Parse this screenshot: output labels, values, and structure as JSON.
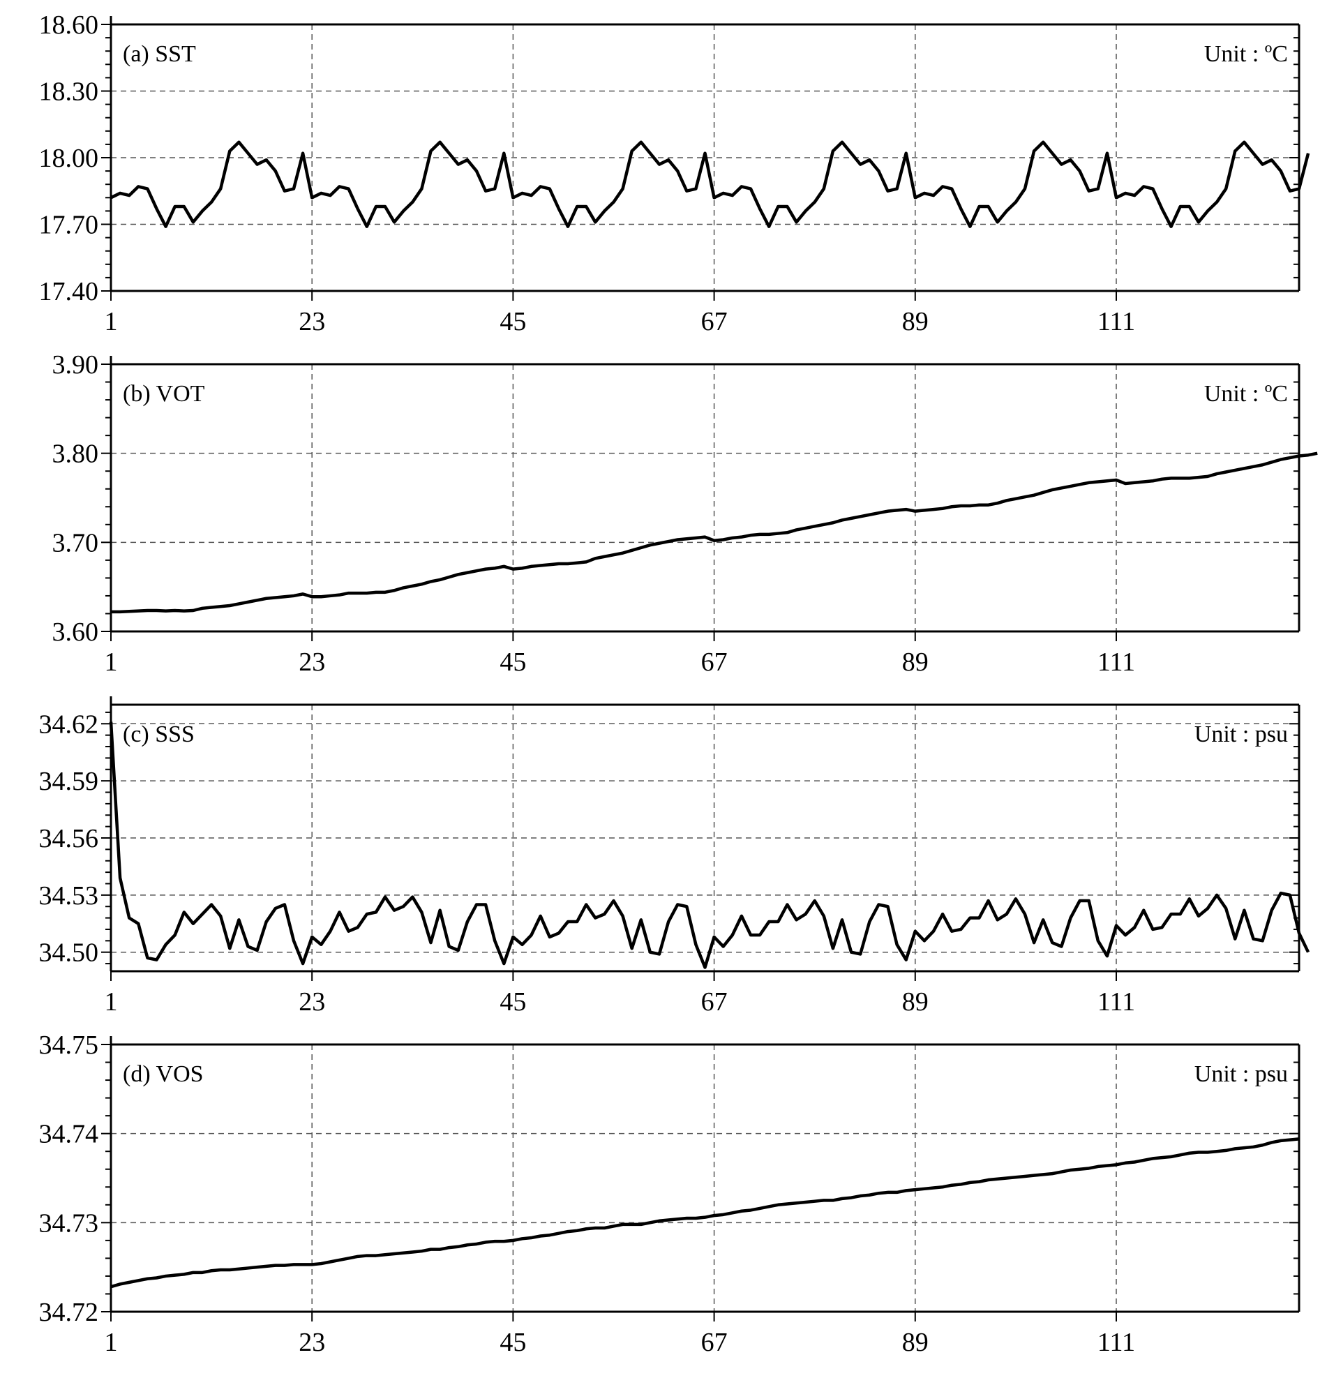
{
  "chart_data": [
    {
      "type": "line",
      "title": "(a) SST",
      "unit_label": "Unit : ºC",
      "xlim": [
        1,
        131
      ],
      "x_ticks": [
        1,
        23,
        45,
        67,
        89,
        111
      ],
      "ylim": [
        17.4,
        18.6
      ],
      "y_ticks": [
        "17.40",
        "17.70",
        "18.00",
        "18.30",
        "18.60"
      ],
      "grid": true,
      "values": [
        17.82,
        17.84,
        17.83,
        17.87,
        17.86,
        17.77,
        17.69,
        17.78,
        17.78,
        17.71,
        17.76,
        17.8,
        17.86,
        18.03,
        18.07,
        18.02,
        17.97,
        17.99,
        17.94,
        17.85,
        17.86,
        18.02,
        17.82,
        17.84,
        17.83,
        17.87,
        17.86,
        17.77,
        17.69,
        17.78,
        17.78,
        17.71,
        17.76,
        17.8,
        17.86,
        18.03,
        18.07,
        18.02,
        17.97,
        17.99,
        17.94,
        17.85,
        17.86,
        18.02,
        17.82,
        17.84,
        17.83,
        17.87,
        17.86,
        17.77,
        17.69,
        17.78,
        17.78,
        17.71,
        17.76,
        17.8,
        17.86,
        18.03,
        18.07,
        18.02,
        17.97,
        17.99,
        17.94,
        17.85,
        17.86,
        18.02,
        17.82,
        17.84,
        17.83,
        17.87,
        17.86,
        17.77,
        17.69,
        17.78,
        17.78,
        17.71,
        17.76,
        17.8,
        17.86,
        18.03,
        18.07,
        18.02,
        17.97,
        17.99,
        17.94,
        17.85,
        17.86,
        18.02,
        17.82,
        17.84,
        17.83,
        17.87,
        17.86,
        17.77,
        17.69,
        17.78,
        17.78,
        17.71,
        17.76,
        17.8,
        17.86,
        18.03,
        18.07,
        18.02,
        17.97,
        17.99,
        17.94,
        17.85,
        17.86,
        18.02,
        17.82,
        17.84,
        17.83,
        17.87,
        17.86,
        17.77,
        17.69,
        17.78,
        17.78,
        17.71,
        17.76,
        17.8,
        17.86,
        18.03,
        18.07,
        18.02,
        17.97,
        17.99,
        17.94,
        17.85,
        17.86,
        18.02
      ]
    },
    {
      "type": "line",
      "title": "(b) VOT",
      "unit_label": "Unit : ºC",
      "xlim": [
        1,
        131
      ],
      "x_ticks": [
        1,
        23,
        45,
        67,
        89,
        111
      ],
      "ylim": [
        3.6,
        3.9
      ],
      "y_ticks": [
        "3.60",
        "3.70",
        "3.80",
        "3.90"
      ],
      "grid": true,
      "values": [
        3.622,
        3.622,
        3.6225,
        3.623,
        3.6235,
        3.6235,
        3.623,
        3.6235,
        3.623,
        3.6235,
        3.626,
        3.627,
        3.628,
        3.629,
        3.631,
        3.633,
        3.635,
        3.637,
        3.638,
        3.639,
        3.64,
        3.642,
        3.639,
        3.639,
        3.64,
        3.641,
        3.643,
        3.643,
        3.643,
        3.644,
        3.644,
        3.646,
        3.649,
        3.651,
        3.653,
        3.656,
        3.658,
        3.661,
        3.664,
        3.666,
        3.668,
        3.67,
        3.671,
        3.673,
        3.67,
        3.671,
        3.673,
        3.674,
        3.675,
        3.676,
        3.676,
        3.677,
        3.678,
        3.682,
        3.684,
        3.686,
        3.688,
        3.691,
        3.694,
        3.697,
        3.699,
        3.701,
        3.703,
        3.704,
        3.705,
        3.706,
        3.702,
        3.703,
        3.705,
        3.706,
        3.708,
        3.709,
        3.709,
        3.71,
        3.711,
        3.714,
        3.716,
        3.718,
        3.72,
        3.722,
        3.725,
        3.727,
        3.729,
        3.731,
        3.733,
        3.735,
        3.736,
        3.737,
        3.735,
        3.736,
        3.737,
        3.738,
        3.74,
        3.741,
        3.741,
        3.742,
        3.742,
        3.744,
        3.747,
        3.749,
        3.751,
        3.753,
        3.756,
        3.759,
        3.761,
        3.763,
        3.765,
        3.767,
        3.768,
        3.769,
        3.77,
        3.766,
        3.767,
        3.768,
        3.769,
        3.771,
        3.772,
        3.772,
        3.772,
        3.773,
        3.774,
        3.777,
        3.779,
        3.781,
        3.783,
        3.785,
        3.787,
        3.79,
        3.793,
        3.795,
        3.797,
        3.798,
        3.8
      ]
    },
    {
      "type": "line",
      "title": "(c) SSS",
      "unit_label": "Unit : psu",
      "xlim": [
        1,
        131
      ],
      "x_ticks": [
        1,
        23,
        45,
        67,
        89,
        111
      ],
      "ylim": [
        34.49,
        34.63
      ],
      "y_ticks": [
        "34.50",
        "34.53",
        "34.56",
        "34.59",
        "34.62"
      ],
      "grid": true,
      "values": [
        34.621,
        34.539,
        34.518,
        34.515,
        34.497,
        34.496,
        34.504,
        34.509,
        34.521,
        34.515,
        34.52,
        34.525,
        34.519,
        34.502,
        34.517,
        34.503,
        34.501,
        34.516,
        34.523,
        34.525,
        34.506,
        34.494,
        34.508,
        34.504,
        34.511,
        34.521,
        34.511,
        34.513,
        34.52,
        34.521,
        34.529,
        34.522,
        34.524,
        34.529,
        34.521,
        34.505,
        34.522,
        34.503,
        34.501,
        34.516,
        34.525,
        34.525,
        34.506,
        34.494,
        34.508,
        34.504,
        34.509,
        34.519,
        34.508,
        34.51,
        34.516,
        34.516,
        34.525,
        34.518,
        34.52,
        34.527,
        34.519,
        34.502,
        34.517,
        34.5,
        34.499,
        34.516,
        34.525,
        34.524,
        34.504,
        34.492,
        34.508,
        34.503,
        34.509,
        34.519,
        34.509,
        34.509,
        34.516,
        34.516,
        34.525,
        34.517,
        34.52,
        34.527,
        34.519,
        34.502,
        34.517,
        34.5,
        34.499,
        34.516,
        34.525,
        34.524,
        34.504,
        34.496,
        34.511,
        34.506,
        34.511,
        34.52,
        34.511,
        34.512,
        34.518,
        34.518,
        34.527,
        34.517,
        34.52,
        34.528,
        34.52,
        34.505,
        34.517,
        34.505,
        34.503,
        34.518,
        34.527,
        34.527,
        34.506,
        34.498,
        34.514,
        34.509,
        34.513,
        34.522,
        34.512,
        34.513,
        34.52,
        34.52,
        34.528,
        34.519,
        34.523,
        34.53,
        34.523,
        34.507,
        34.522,
        34.507,
        34.506,
        34.522,
        34.531,
        34.53,
        34.51,
        34.5
      ]
    },
    {
      "type": "line",
      "title": "(d) VOS",
      "unit_label": "Unit : psu",
      "xlim": [
        1,
        131
      ],
      "x_ticks": [
        1,
        23,
        45,
        67,
        89,
        111
      ],
      "ylim": [
        34.72,
        34.75
      ],
      "y_ticks": [
        "34.72",
        "34.73",
        "34.74",
        "34.75"
      ],
      "grid": true,
      "values": [
        34.7228,
        34.7231,
        34.7233,
        34.7235,
        34.7237,
        34.7238,
        34.724,
        34.7241,
        34.7242,
        34.7244,
        34.7244,
        34.7246,
        34.7247,
        34.7247,
        34.7248,
        34.7249,
        34.725,
        34.7251,
        34.7252,
        34.7252,
        34.7253,
        34.7253,
        34.7253,
        34.7254,
        34.7256,
        34.7258,
        34.726,
        34.7262,
        34.7263,
        34.7263,
        34.7264,
        34.7265,
        34.7266,
        34.7267,
        34.7268,
        34.727,
        34.727,
        34.7272,
        34.7273,
        34.7275,
        34.7276,
        34.7278,
        34.7279,
        34.7279,
        34.728,
        34.7282,
        34.7283,
        34.7285,
        34.7286,
        34.7288,
        34.729,
        34.7291,
        34.7293,
        34.7294,
        34.7294,
        34.7296,
        34.7298,
        34.7298,
        34.7298,
        34.73,
        34.7302,
        34.7303,
        34.7304,
        34.7305,
        34.7305,
        34.7306,
        34.7308,
        34.7309,
        34.7311,
        34.7313,
        34.7314,
        34.7316,
        34.7318,
        34.732,
        34.7321,
        34.7322,
        34.7323,
        34.7324,
        34.7325,
        34.7325,
        34.7327,
        34.7328,
        34.733,
        34.7331,
        34.7333,
        34.7334,
        34.7334,
        34.7336,
        34.7337,
        34.7338,
        34.7339,
        34.734,
        34.7342,
        34.7343,
        34.7345,
        34.7346,
        34.7348,
        34.7349,
        34.735,
        34.7351,
        34.7352,
        34.7353,
        34.7354,
        34.7355,
        34.7357,
        34.7359,
        34.736,
        34.7361,
        34.7363,
        34.7364,
        34.7365,
        34.7367,
        34.7368,
        34.737,
        34.7372,
        34.7373,
        34.7374,
        34.7376,
        34.7378,
        34.7379,
        34.7379,
        34.738,
        34.7381,
        34.7383,
        34.7384,
        34.7385,
        34.7387,
        34.739,
        34.7392,
        34.7393,
        34.7394
      ]
    }
  ]
}
